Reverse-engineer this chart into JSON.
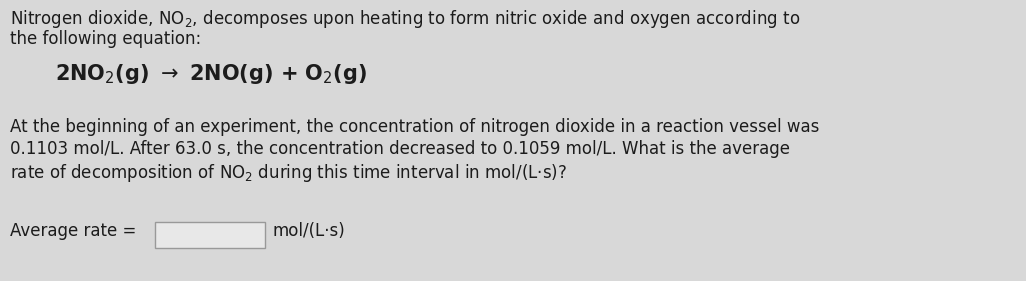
{
  "background_color": "#d8d8d8",
  "text_color": "#1c1c1c",
  "font_family": "DejaVu Sans",
  "font_size_body": 12.0,
  "font_size_equation": 15.0,
  "line1": "Nitrogen dioxide, NO$_2$, decomposes upon heating to form nitric oxide and oxygen according to",
  "line2": "the following equation:",
  "equation": "2NO$_2$(g) $\\rightarrow$ 2NO(g) + O$_2$(g)",
  "para1": "At the beginning of an experiment, the concentration of nitrogen dioxide in a reaction vessel was",
  "para2": "0.1103 mol/L. After 63.0 s, the concentration decreased to 0.1059 mol/L. What is the average",
  "para3": "rate of decomposition of NO$_2$ during this time interval in mol/(L·s)?",
  "answer_label": "Average rate = ",
  "answer_unit": "mol/(L·s)",
  "fig_width": 10.26,
  "fig_height": 2.81,
  "dpi": 100
}
